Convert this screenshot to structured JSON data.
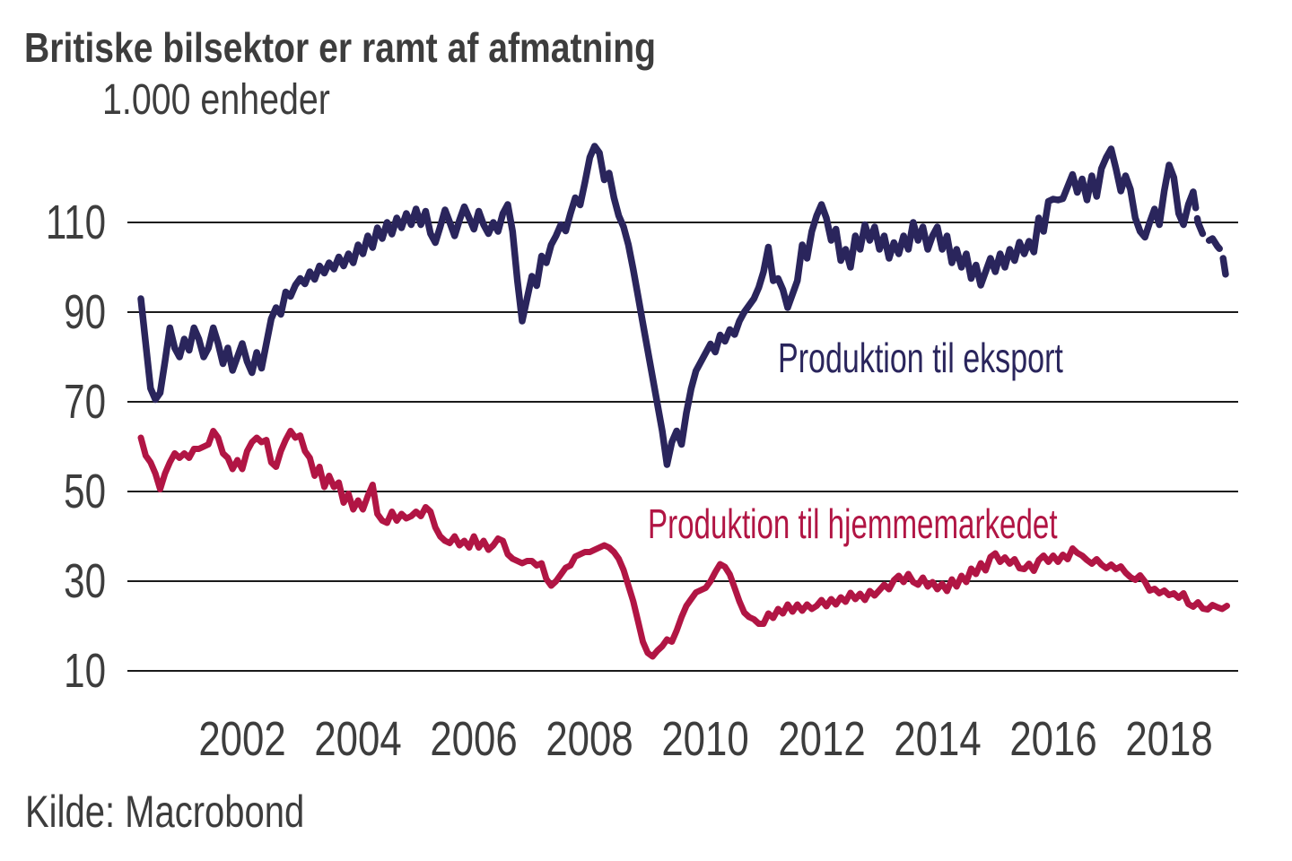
{
  "chart_data": {
    "type": "line",
    "title": "Britiske bilsektor er ramt af afmatning",
    "ylabel": "1.000 enheder",
    "xlabel": "",
    "source": "Kilde: Macrobond",
    "grid": "horizontal",
    "legend_position": "inline-labels-on-chart",
    "x_start": 2000.25,
    "x_step": 0.0833333,
    "x_ticks": [
      2002,
      2004,
      2006,
      2008,
      2010,
      2012,
      2014,
      2016,
      2018
    ],
    "y_ticks": [
      10,
      30,
      50,
      70,
      90,
      110
    ],
    "ylim": [
      5,
      130
    ],
    "xlim": [
      2000.1,
      2019.3
    ],
    "series": [
      {
        "name": "Produktion til eksport",
        "color": "#2a255c",
        "dash_from_index": 218,
        "values": [
          93,
          83,
          73,
          70.5,
          72,
          79,
          86.5,
          82,
          80,
          84,
          81.5,
          86.5,
          84,
          80,
          82,
          86.5,
          83,
          78.5,
          82,
          77,
          80,
          83,
          79,
          76.5,
          81,
          77.5,
          83,
          88.5,
          91,
          89.5,
          94.5,
          93.5,
          96,
          97.5,
          96.3,
          99,
          97.3,
          100.3,
          98.7,
          101,
          99.6,
          102.3,
          100.3,
          103,
          101,
          105,
          103,
          107,
          104.4,
          108.8,
          106.4,
          110,
          107.4,
          111,
          108.8,
          112,
          109.5,
          113,
          109.5,
          112.5,
          107.5,
          105.5,
          109,
          112.8,
          110,
          107,
          110.5,
          113.5,
          111,
          108.5,
          112.5,
          109.5,
          107.5,
          110,
          108,
          112,
          114,
          108,
          97,
          88,
          93,
          98,
          95.9,
          102.5,
          101,
          105,
          107,
          109.5,
          108.1,
          112,
          115.5,
          113.9,
          119,
          124.5,
          127,
          125.5,
          119.5,
          121,
          115.5,
          111.5,
          109,
          105,
          99.5,
          93.5,
          87.5,
          81.5,
          75.5,
          69.5,
          63.5,
          56,
          61,
          63.5,
          60.5,
          67.5,
          72.9,
          76.9,
          78.9,
          80.9,
          82.9,
          81.1,
          84.9,
          83.5,
          86.1,
          85,
          88,
          90,
          91.5,
          93,
          95.5,
          99,
          104.5,
          97,
          97.5,
          95,
          91,
          94,
          97,
          105,
          102,
          108,
          111.5,
          114,
          111,
          106,
          108.5,
          101.5,
          104,
          100,
          107,
          104,
          109.5,
          106,
          109,
          104,
          107,
          102,
          105.5,
          103,
          107,
          104,
          110,
          106,
          109,
          104,
          107,
          109,
          104,
          107,
          101,
          104,
          100,
          103,
          97.5,
          100.5,
          96,
          99,
          102,
          99,
          103,
          100,
          104,
          101.5,
          105.6,
          103,
          105.8,
          103.4,
          111,
          108,
          114.7,
          115.2,
          115,
          115.3,
          118,
          120.7,
          116.7,
          119.7,
          115,
          120.4,
          115.8,
          122,
          124.5,
          126.4,
          122,
          117,
          120.4,
          117.4,
          111,
          108,
          106.7,
          110,
          113,
          109.5,
          117,
          122.8,
          120,
          112,
          109.5,
          114,
          116.8,
          110,
          107.4,
          105.8,
          106.4,
          104.7,
          103.5,
          96.4
        ]
      },
      {
        "name": "Produktion til hjemmemarkedet",
        "color": "#b11544",
        "dash_from_index": null,
        "values": [
          62,
          58,
          56.5,
          54,
          50.5,
          54,
          56.5,
          58.5,
          57.5,
          58.5,
          57.5,
          59.5,
          59.5,
          60,
          60.5,
          63.5,
          62,
          58.5,
          57.5,
          55,
          57,
          55,
          59,
          61,
          62,
          61,
          61.5,
          56.5,
          55.5,
          59,
          61.5,
          63.5,
          62,
          62.5,
          59,
          57.5,
          53.5,
          55.5,
          51,
          53.5,
          51,
          52,
          47.5,
          49.5,
          46,
          48,
          46,
          49,
          51.5,
          45,
          43.5,
          43,
          45.5,
          43.5,
          45,
          44,
          44.5,
          45.5,
          44.5,
          46.5,
          45.5,
          42,
          40,
          39,
          38.5,
          40,
          38,
          39,
          37.5,
          40,
          37.5,
          39,
          37,
          38,
          39.5,
          39,
          36,
          35,
          34.5,
          34,
          34.5,
          34.5,
          33.5,
          34,
          30.5,
          29,
          30,
          31.5,
          33,
          33.5,
          35.5,
          36,
          36.5,
          36.5,
          37,
          37.5,
          38,
          37.5,
          36.5,
          35,
          32.5,
          29,
          25.5,
          21,
          16.5,
          14,
          13.2,
          14.5,
          15.5,
          17,
          16.5,
          19,
          22,
          24.5,
          26,
          27.5,
          28,
          28.5,
          30,
          32,
          33.8,
          33.2,
          31.5,
          28.5,
          25.5,
          23,
          22,
          21.5,
          20.5,
          20.5,
          22.8,
          21.8,
          23.8,
          22.8,
          24.8,
          23.2,
          24.8,
          23.4,
          24.8,
          23.8,
          24.5,
          25.8,
          24.4,
          26,
          24.8,
          26.4,
          25.4,
          27.4,
          26,
          27.2,
          25.8,
          27.8,
          26.8,
          28,
          29.2,
          28.2,
          30.2,
          31.2,
          29.8,
          31.6,
          29.8,
          29.2,
          30.8,
          28.8,
          29.8,
          28.2,
          29.4,
          27.8,
          30.4,
          28.8,
          31.2,
          29.8,
          32.8,
          31.6,
          34,
          32.4,
          35.4,
          36.2,
          34.3,
          35.3,
          33.9,
          34.9,
          32.9,
          32.7,
          33.9,
          32.3,
          34.7,
          35.7,
          34.3,
          35.7,
          34.3,
          35.9,
          34.9,
          37.3,
          36.3,
          35.7,
          34.7,
          33.9,
          34.9,
          33.7,
          32.9,
          33.7,
          32.7,
          33.3,
          31.9,
          30.9,
          30.3,
          31.3,
          29.9,
          27.9,
          28.3,
          27.3,
          27.9,
          26.9,
          27.3,
          26.3,
          27.3,
          24.9,
          24.3,
          25.3,
          23.9,
          23.7,
          24.7,
          24.2,
          23.8,
          24.5
        ]
      }
    ]
  },
  "colors": {
    "background": "#ffffff",
    "text": "#3d3d3d",
    "grid": "#1a1a1a",
    "navy": "#2a255c",
    "crimson": "#b11544"
  }
}
